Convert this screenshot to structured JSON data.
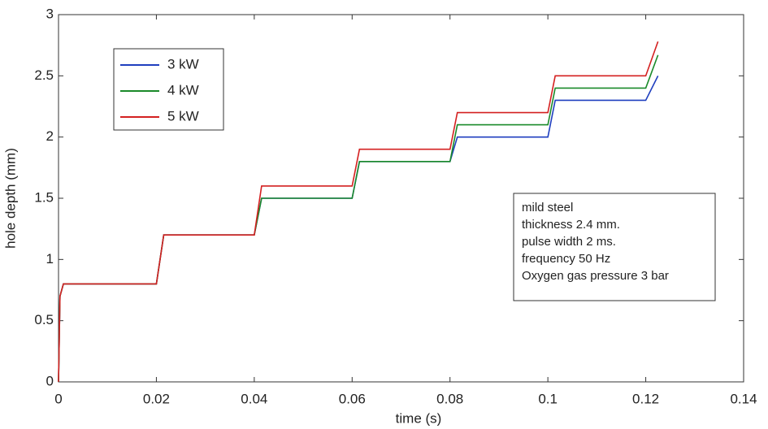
{
  "chart_data": {
    "type": "line",
    "xlabel": "time (s)",
    "ylabel": "hole depth (mm)",
    "x": [
      0,
      0.0003,
      0.001,
      0.02,
      0.0215,
      0.04,
      0.0415,
      0.06,
      0.0615,
      0.08,
      0.0815,
      0.1,
      0.1015,
      0.12,
      0.1225
    ],
    "series": [
      {
        "name": "3 kW",
        "color": "#1f3fbf",
        "values": [
          0,
          0.7,
          0.8,
          0.8,
          1.2,
          1.2,
          1.5,
          1.5,
          1.8,
          1.8,
          2.0,
          2.0,
          2.3,
          2.3,
          2.5
        ]
      },
      {
        "name": "4 kW",
        "color": "#1a8a2a",
        "values": [
          0,
          0.7,
          0.8,
          0.8,
          1.2,
          1.2,
          1.5,
          1.5,
          1.8,
          1.8,
          2.1,
          2.1,
          2.4,
          2.4,
          2.67
        ]
      },
      {
        "name": "5 kW",
        "color": "#d42020",
        "values": [
          0,
          0.7,
          0.8,
          0.8,
          1.2,
          1.2,
          1.6,
          1.6,
          1.9,
          1.9,
          2.2,
          2.2,
          2.5,
          2.5,
          2.78
        ]
      }
    ],
    "xlim": [
      0,
      0.14
    ],
    "xticks": [
      0,
      0.02,
      0.04,
      0.06,
      0.08,
      0.1,
      0.12,
      0.14
    ],
    "ylim": [
      0,
      3
    ],
    "yticks": [
      0,
      0.5,
      1,
      1.5,
      2,
      2.5,
      3
    ],
    "legend": "upper-left",
    "annotation": [
      "mild steel",
      "thickness 2.4 mm.",
      "pulse width 2 ms.",
      "frequency 50 Hz",
      "Oxygen gas pressure 3 bar"
    ]
  }
}
